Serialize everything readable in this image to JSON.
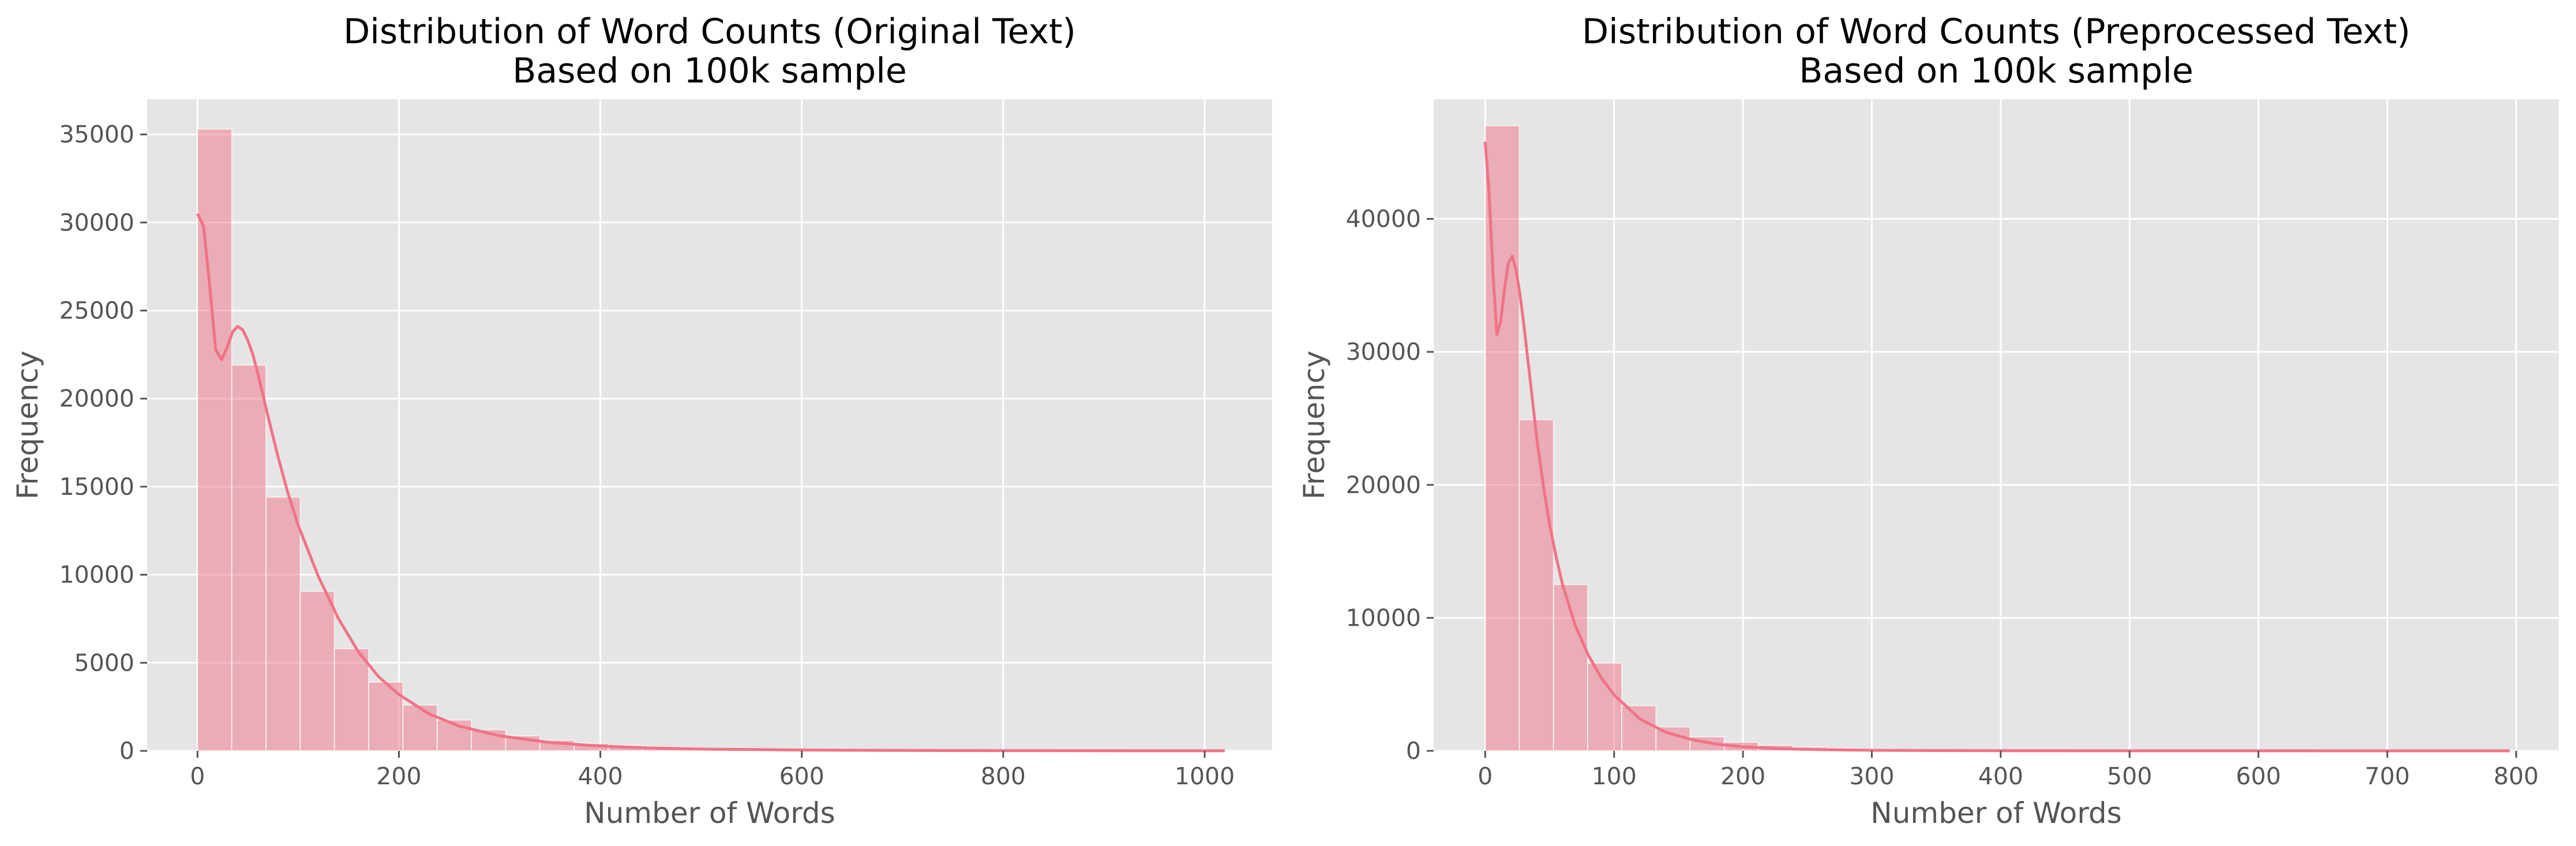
{
  "chart_data": [
    {
      "type": "bar",
      "title": "Distribution of Word Counts (Original Text)",
      "subtitle": "Based on 100k sample",
      "xlabel": "Number of Words",
      "ylabel": "Frequency",
      "xlim": [
        -50,
        1067
      ],
      "ylim": [
        0,
        37000
      ],
      "xticks": [
        0,
        200,
        400,
        600,
        800,
        1000
      ],
      "yticks": [
        0,
        5000,
        10000,
        15000,
        20000,
        25000,
        30000,
        35000
      ],
      "grid": true,
      "bar_color": "#f07387",
      "line_color": "#f07387",
      "background_color": "#e5e5e5",
      "bins": [
        {
          "x0": 0,
          "x1": 34,
          "value": 35300
        },
        {
          "x0": 34,
          "x1": 68,
          "value": 21900
        },
        {
          "x0": 68,
          "x1": 102,
          "value": 14400
        },
        {
          "x0": 102,
          "x1": 136,
          "value": 9050
        },
        {
          "x0": 136,
          "x1": 170,
          "value": 5800
        },
        {
          "x0": 170,
          "x1": 204,
          "value": 3900
        },
        {
          "x0": 204,
          "x1": 238,
          "value": 2600
        },
        {
          "x0": 238,
          "x1": 272,
          "value": 1750
        },
        {
          "x0": 272,
          "x1": 306,
          "value": 1200
        },
        {
          "x0": 306,
          "x1": 340,
          "value": 850
        },
        {
          "x0": 340,
          "x1": 374,
          "value": 600
        },
        {
          "x0": 374,
          "x1": 408,
          "value": 420
        },
        {
          "x0": 408,
          "x1": 442,
          "value": 300
        },
        {
          "x0": 442,
          "x1": 476,
          "value": 220
        },
        {
          "x0": 476,
          "x1": 510,
          "value": 160
        },
        {
          "x0": 510,
          "x1": 544,
          "value": 120
        },
        {
          "x0": 544,
          "x1": 578,
          "value": 90
        },
        {
          "x0": 578,
          "x1": 612,
          "value": 65
        },
        {
          "x0": 612,
          "x1": 646,
          "value": 50
        },
        {
          "x0": 646,
          "x1": 680,
          "value": 38
        },
        {
          "x0": 680,
          "x1": 714,
          "value": 30
        },
        {
          "x0": 714,
          "x1": 748,
          "value": 24
        },
        {
          "x0": 748,
          "x1": 782,
          "value": 20
        },
        {
          "x0": 782,
          "x1": 816,
          "value": 16
        },
        {
          "x0": 816,
          "x1": 850,
          "value": 13
        },
        {
          "x0": 850,
          "x1": 884,
          "value": 11
        },
        {
          "x0": 884,
          "x1": 918,
          "value": 9
        },
        {
          "x0": 918,
          "x1": 952,
          "value": 8
        },
        {
          "x0": 952,
          "x1": 986,
          "value": 7
        },
        {
          "x0": 986,
          "x1": 1020,
          "value": 6
        }
      ],
      "kde": {
        "x": [
          0,
          6,
          12,
          18,
          24,
          30,
          35,
          40,
          45,
          50,
          55,
          60,
          70,
          80,
          90,
          100,
          120,
          140,
          160,
          180,
          200,
          230,
          260,
          300,
          350,
          400,
          450,
          500,
          600,
          700,
          800,
          900,
          1020
        ],
        "y": [
          30500,
          29800,
          26500,
          22800,
          22200,
          23000,
          23800,
          24100,
          23900,
          23300,
          22500,
          21400,
          19000,
          16700,
          14600,
          12800,
          9900,
          7500,
          5600,
          4200,
          3200,
          2100,
          1400,
          850,
          470,
          270,
          160,
          100,
          45,
          22,
          12,
          7,
          4
        ]
      }
    },
    {
      "type": "bar",
      "title": "Distribution of Word Counts (Preprocessed Text)",
      "subtitle": "Based on 100k sample",
      "xlabel": "Number of Words",
      "ylabel": "Frequency",
      "xlim": [
        -40,
        833
      ],
      "ylim": [
        0,
        49000
      ],
      "xticks": [
        0,
        100,
        200,
        300,
        400,
        500,
        600,
        700,
        800
      ],
      "yticks": [
        0,
        10000,
        20000,
        30000,
        40000
      ],
      "grid": true,
      "bar_color": "#f07387",
      "line_color": "#f07387",
      "background_color": "#e5e5e5",
      "bins": [
        {
          "x0": 0,
          "x1": 26.5,
          "value": 47000
        },
        {
          "x0": 26.5,
          "x1": 53,
          "value": 24900
        },
        {
          "x0": 53,
          "x1": 79.5,
          "value": 12500
        },
        {
          "x0": 79.5,
          "x1": 106,
          "value": 6600
        },
        {
          "x0": 106,
          "x1": 132.5,
          "value": 3400
        },
        {
          "x0": 132.5,
          "x1": 159,
          "value": 1800
        },
        {
          "x0": 159,
          "x1": 185.5,
          "value": 1050
        },
        {
          "x0": 185.5,
          "x1": 212,
          "value": 650
        },
        {
          "x0": 212,
          "x1": 238.5,
          "value": 420
        },
        {
          "x0": 238.5,
          "x1": 265,
          "value": 280
        },
        {
          "x0": 265,
          "x1": 291.5,
          "value": 190
        },
        {
          "x0": 291.5,
          "x1": 318,
          "value": 130
        },
        {
          "x0": 318,
          "x1": 344.5,
          "value": 95
        },
        {
          "x0": 344.5,
          "x1": 371,
          "value": 70
        },
        {
          "x0": 371,
          "x1": 397.5,
          "value": 52
        },
        {
          "x0": 397.5,
          "x1": 424,
          "value": 40
        },
        {
          "x0": 424,
          "x1": 450.5,
          "value": 31
        },
        {
          "x0": 450.5,
          "x1": 477,
          "value": 25
        },
        {
          "x0": 477,
          "x1": 503.5,
          "value": 20
        },
        {
          "x0": 503.5,
          "x1": 530,
          "value": 16
        },
        {
          "x0": 530,
          "x1": 556.5,
          "value": 13
        },
        {
          "x0": 556.5,
          "x1": 583,
          "value": 11
        },
        {
          "x0": 583,
          "x1": 609.5,
          "value": 9
        },
        {
          "x0": 609.5,
          "x1": 636,
          "value": 8
        },
        {
          "x0": 636,
          "x1": 662.5,
          "value": 7
        },
        {
          "x0": 662.5,
          "x1": 689,
          "value": 6
        },
        {
          "x0": 689,
          "x1": 715.5,
          "value": 5
        },
        {
          "x0": 715.5,
          "x1": 742,
          "value": 5
        },
        {
          "x0": 742,
          "x1": 768.5,
          "value": 4
        },
        {
          "x0": 768.5,
          "x1": 795,
          "value": 4
        }
      ],
      "kde": {
        "x": [
          0,
          3,
          6,
          9,
          12,
          15,
          18,
          21,
          24,
          27,
          30,
          35,
          40,
          45,
          50,
          55,
          60,
          70,
          80,
          90,
          100,
          120,
          140,
          160,
          180,
          200,
          230,
          260,
          300,
          350,
          400,
          500,
          600,
          700,
          795
        ],
        "y": [
          45800,
          42000,
          36000,
          31300,
          32300,
          34800,
          36700,
          37200,
          36100,
          34300,
          32000,
          27800,
          23500,
          20000,
          17000,
          14600,
          12500,
          9400,
          7200,
          5500,
          4200,
          2400,
          1400,
          850,
          500,
          300,
          160,
          90,
          45,
          22,
          12,
          5,
          3,
          2,
          1
        ]
      }
    }
  ]
}
